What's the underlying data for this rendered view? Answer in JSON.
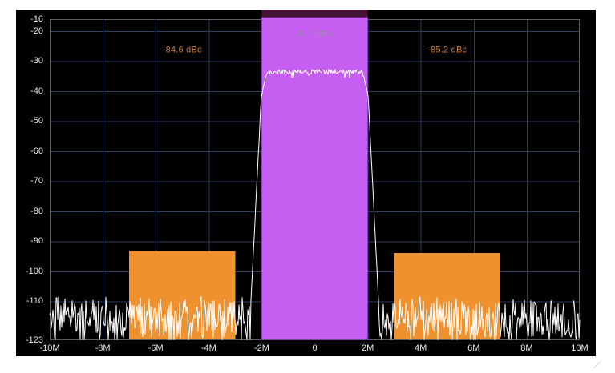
{
  "page": {
    "background": "#ffffff"
  },
  "panel": {
    "background": "#000000",
    "frame_color": "#585d66",
    "grid_color": "#2b3c5e",
    "tick_label_color": "#e8e8e8"
  },
  "chart_data": {
    "type": "line",
    "description": "Spectrum analyzer display with adjacent channel power (ACPR) measurement",
    "x_range_mhz": [
      -10,
      10
    ],
    "y_range_dbm": [
      -16,
      -123
    ],
    "grid": {
      "shown": true,
      "vertical_step_mhz": 2,
      "horizontal_lines_dbm": [
        -20,
        -30,
        -40,
        -50,
        -60,
        -70,
        -80,
        -90,
        -100,
        -110
      ]
    },
    "x_ticks": [
      {
        "value": -10,
        "label": "-10M"
      },
      {
        "value": -8,
        "label": "-8M"
      },
      {
        "value": -6,
        "label": "-6M"
      },
      {
        "value": -4,
        "label": "-4M"
      },
      {
        "value": -2,
        "label": "-2M"
      },
      {
        "value": 0,
        "label": "0"
      },
      {
        "value": 2,
        "label": "2M"
      },
      {
        "value": 4,
        "label": "4M"
      },
      {
        "value": 6,
        "label": "6M"
      },
      {
        "value": 8,
        "label": "8M"
      },
      {
        "value": 10,
        "label": "10M"
      }
    ],
    "y_ticks": [
      {
        "value": -16,
        "label": "-16"
      },
      {
        "value": -20,
        "label": "-20"
      },
      {
        "value": -30,
        "label": "-30"
      },
      {
        "value": -40,
        "label": "-40"
      },
      {
        "value": -50,
        "label": "-50"
      },
      {
        "value": -60,
        "label": "-60"
      },
      {
        "value": -70,
        "label": "-70"
      },
      {
        "value": -80,
        "label": "-80"
      },
      {
        "value": -90,
        "label": "-90"
      },
      {
        "value": -100,
        "label": "-100"
      },
      {
        "value": -110,
        "label": "-110"
      },
      {
        "value": -123,
        "label": "-123"
      }
    ],
    "trace": {
      "name": "spectrum-trace",
      "color": "#ffffff",
      "plateau_dbm": -33.6,
      "plateau_jitter_db": 1.8,
      "plateau_halfwidth_mhz": 1.72,
      "band_edge_mhz": 2.02,
      "skirt_knee_dbm": -42.5,
      "skirt_base_mhz": 2.42,
      "skirt_base_dbm": -112,
      "noise_floor_mean_dbm": -116,
      "noise_spread_db": 12.5
    },
    "channels": {
      "main": {
        "from_mhz": -2,
        "to_mhz": 2,
        "power_label": "-8.7 dBm",
        "power_dbm": -8.7,
        "fill_color": "#c75ef2",
        "edge_color": "#8d35c4",
        "header_strip_color": "#451233",
        "label_color": "#9b8dab"
      },
      "adjacent": [
        {
          "side": "lower",
          "from_mhz": -7,
          "to_mhz": -3,
          "ratio_label": "-84.6 dBc",
          "ratio_dbc": -84.6,
          "fill_color": "#f0912f",
          "label_color": "#c97a31"
        },
        {
          "side": "upper",
          "from_mhz": 3,
          "to_mhz": 7,
          "ratio_label": "-85.2 dBc",
          "ratio_dbc": -85.2,
          "fill_color": "#f0912f",
          "label_color": "#c97a31"
        }
      ]
    }
  }
}
